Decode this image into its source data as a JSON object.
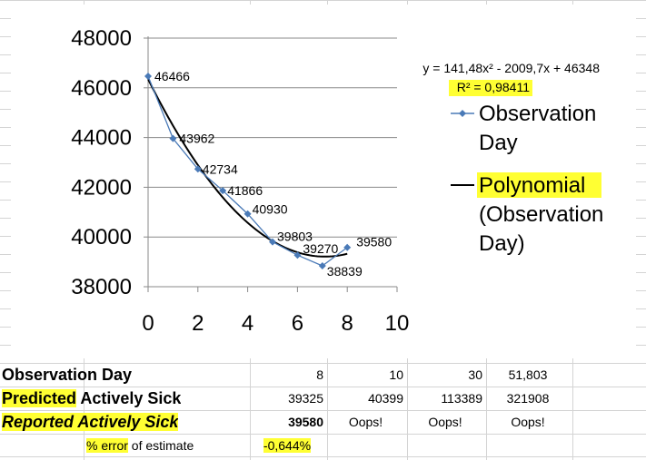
{
  "chart_data": {
    "type": "scatter",
    "title": "",
    "xlabel": "",
    "ylabel": "",
    "xlim": [
      0,
      10
    ],
    "ylim": [
      38000,
      48000
    ],
    "x_ticks": [
      "0",
      "2",
      "4",
      "6",
      "8",
      "10"
    ],
    "y_ticks": [
      "48000",
      "46000",
      "44000",
      "42000",
      "40000",
      "38000"
    ],
    "grid": true,
    "legend_position": "right",
    "series": [
      {
        "name": "Observation Day",
        "color": "#4a7ab7",
        "marker": "diamond",
        "x": [
          0,
          1,
          2,
          3,
          4,
          5,
          6,
          7,
          8
        ],
        "y": [
          46466,
          43962,
          42734,
          41866,
          40930,
          39803,
          39270,
          38839,
          39580
        ],
        "labels": [
          "46466",
          "43962",
          "42734",
          "41866",
          "40930",
          "39803",
          "39270",
          "38839",
          "39580"
        ]
      },
      {
        "name": "Polynomial (Observation Day)",
        "color": "#000000",
        "type": "trendline",
        "coefficients": [
          141.48,
          -2009.7,
          46348
        ],
        "x_range": [
          0,
          8
        ]
      }
    ],
    "legend": [
      {
        "lines": [
          "Observation",
          "Day"
        ],
        "highlight": false
      },
      {
        "lines": [
          "Polynomial",
          "(Observation",
          "Day)"
        ],
        "highlight": true
      }
    ],
    "equation": "y = 141,48x² - 2009,7x + 46348",
    "r_squared": "R² = 0,98411"
  },
  "table": {
    "rows": [
      {
        "label_a": "Observation Day",
        "label_b": "",
        "cells": [
          "8",
          "10",
          "30",
          "51,803"
        ]
      },
      {
        "label_a": "Predicted",
        "label_b": " Actively Sick",
        "cells": [
          "39325",
          "40399",
          "113389",
          "321908"
        ]
      },
      {
        "label_a": "Reported Actively Sick",
        "label_b": "",
        "cells": [
          "39580",
          "Oops!",
          "Oops!",
          "Oops!"
        ]
      },
      {
        "label_a": "% error",
        "label_b": " of estimate",
        "cells": [
          "-0,644%",
          "",
          "",
          ""
        ]
      }
    ]
  }
}
